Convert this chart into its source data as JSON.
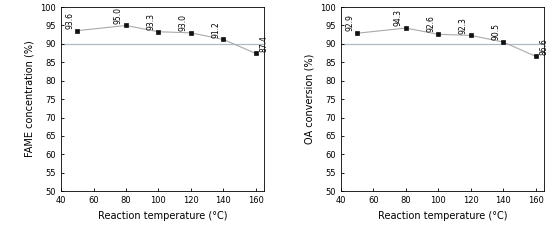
{
  "temperatures": [
    50,
    80,
    100,
    120,
    140,
    160
  ],
  "fame_values": [
    93.6,
    95.0,
    93.3,
    93.0,
    91.2,
    87.4
  ],
  "oa_values": [
    92.9,
    94.3,
    92.6,
    92.3,
    90.5,
    86.6
  ],
  "fame_labels": [
    "93.6",
    "95.0",
    "93.3",
    "93.0",
    "91.2",
    "87.4"
  ],
  "oa_labels": [
    "92.9",
    "94.3",
    "92.6",
    "92.3",
    "90.5",
    "86.6"
  ],
  "xlim": [
    40,
    165
  ],
  "ylim": [
    50,
    100
  ],
  "xticks": [
    40,
    60,
    80,
    100,
    120,
    140,
    160
  ],
  "yticks": [
    50,
    55,
    60,
    65,
    70,
    75,
    80,
    85,
    90,
    95,
    100
  ],
  "xlabel": "Reaction temperature (°C)",
  "ylabel_left": "FAME concentration (%)",
  "ylabel_right": "OA conversion (%)",
  "hline_y": 90,
  "hline_color": "#b0b8cc",
  "line_color": "#aaaaaa",
  "marker_color": "#111111",
  "marker": "s",
  "marker_size": 3.5,
  "label_fontsize": 5.5,
  "tick_fontsize": 6.0,
  "axis_label_fontsize": 7.0
}
